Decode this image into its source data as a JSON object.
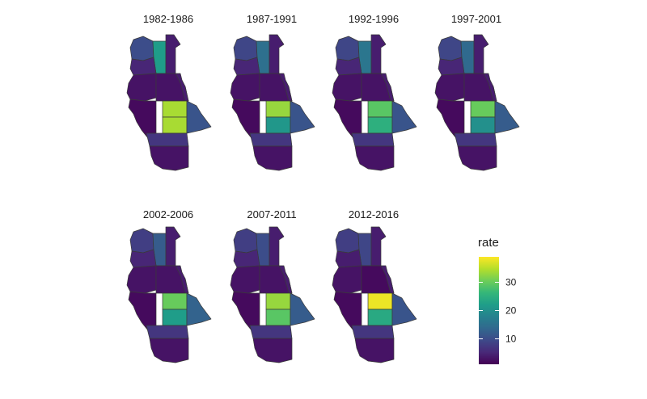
{
  "figure": {
    "panels": [
      {
        "title": "1982-1986",
        "values": {
          "north_w": 10,
          "north_c": 22,
          "north_e": 4,
          "nw_mid": 5,
          "w_mid": 3,
          "c_mid": 3,
          "e_mid": 4,
          "w_low": 2,
          "c_up": 34,
          "c_low": 34,
          "e_low": 11,
          "s_band": 7,
          "s_tip": 3
        }
      },
      {
        "title": "1987-1991",
        "values": {
          "north_w": 9,
          "north_c": 15,
          "north_e": 4,
          "nw_mid": 5,
          "w_mid": 3,
          "c_mid": 3,
          "e_mid": 4,
          "w_low": 2,
          "c_up": 33,
          "c_low": 21,
          "e_low": 11,
          "s_band": 7,
          "s_tip": 3
        }
      },
      {
        "title": "1992-1996",
        "values": {
          "north_w": 9,
          "north_c": 16,
          "north_e": 4,
          "nw_mid": 5,
          "w_mid": 3,
          "c_mid": 3,
          "e_mid": 4,
          "w_low": 2,
          "c_up": 29,
          "c_low": 25,
          "e_low": 11,
          "s_band": 7,
          "s_tip": 3
        }
      },
      {
        "title": "1997-2001",
        "values": {
          "north_w": 9,
          "north_c": 14,
          "north_e": 4,
          "nw_mid": 5,
          "w_mid": 3,
          "c_mid": 3,
          "e_mid": 4,
          "w_low": 2,
          "c_up": 30,
          "c_low": 20,
          "e_low": 12,
          "s_band": 7,
          "s_tip": 3
        }
      },
      {
        "title": "2002-2006",
        "values": {
          "north_w": 8,
          "north_c": 12,
          "north_e": 4,
          "nw_mid": 5,
          "w_mid": 3,
          "c_mid": 3,
          "e_mid": 4,
          "w_low": 2,
          "c_up": 30,
          "c_low": 22,
          "e_low": 13,
          "s_band": 7,
          "s_tip": 3
        }
      },
      {
        "title": "2007-2011",
        "values": {
          "north_w": 8,
          "north_c": 10,
          "north_e": 4,
          "nw_mid": 5,
          "w_mid": 3,
          "c_mid": 3,
          "e_mid": 4,
          "w_low": 2,
          "c_up": 33,
          "c_low": 29,
          "e_low": 12,
          "s_band": 7,
          "s_tip": 3
        }
      },
      {
        "title": "2012-2016",
        "values": {
          "north_w": 8,
          "north_c": 9,
          "north_e": 4,
          "nw_mid": 4,
          "w_mid": 3,
          "c_mid": 2,
          "e_mid": 4,
          "w_low": 2,
          "c_up": 38,
          "c_low": 24,
          "e_low": 11,
          "s_band": 7,
          "s_tip": 3
        }
      }
    ],
    "legend": {
      "title": "rate",
      "min": 1,
      "max": 39,
      "ticks": [
        {
          "value": 10,
          "label": "10"
        },
        {
          "value": 20,
          "label": "20"
        },
        {
          "value": 30,
          "label": "30"
        }
      ],
      "palette": [
        "#440154",
        "#482878",
        "#3e4989",
        "#31688e",
        "#26828e",
        "#1f9e89",
        "#35b779",
        "#6ece58",
        "#b5de2b",
        "#fde725"
      ]
    }
  }
}
